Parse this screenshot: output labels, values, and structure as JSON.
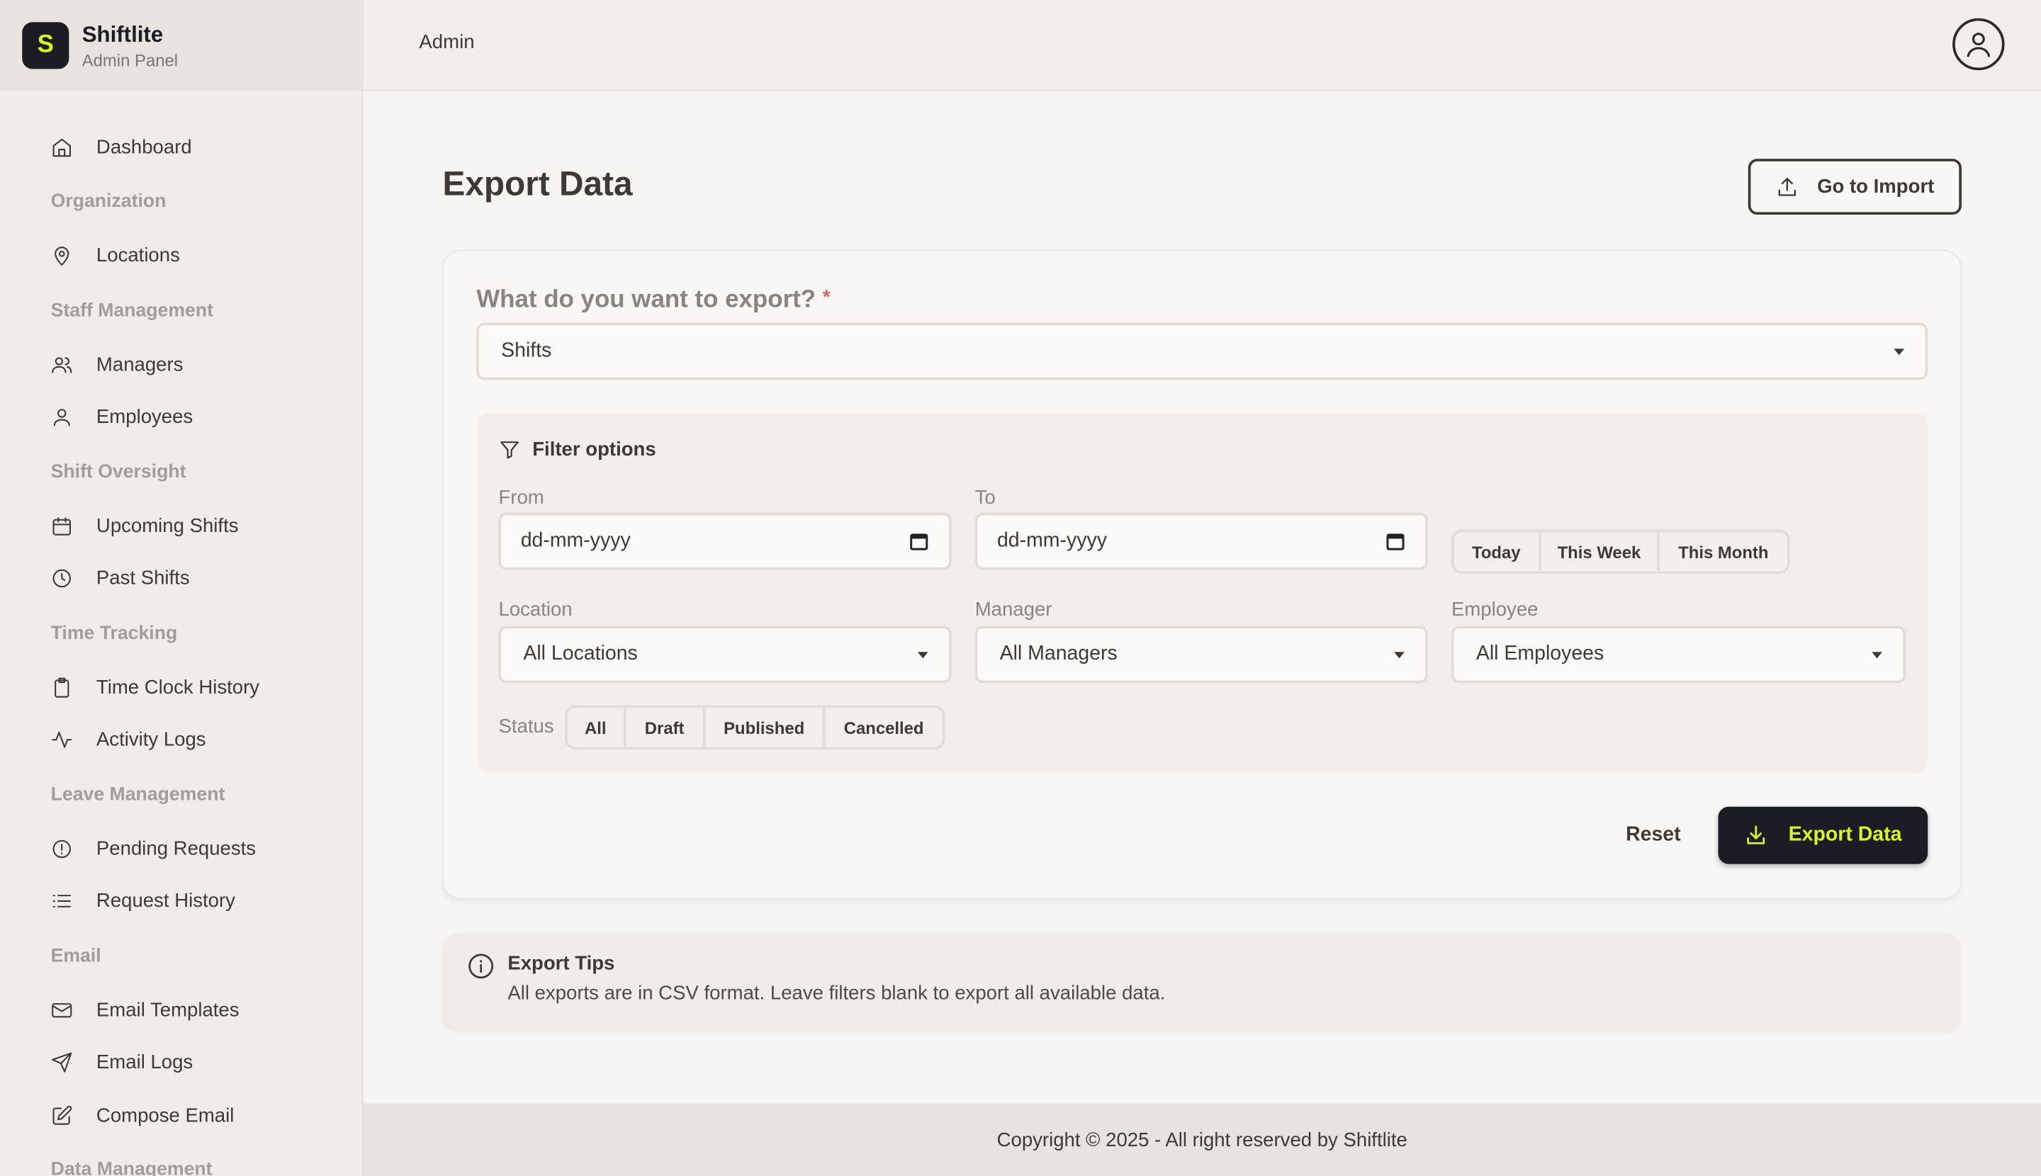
{
  "brand": {
    "logo_letter": "S",
    "name": "Shiftlite",
    "subtitle": "Admin Panel",
    "accent": "#d9f71a",
    "dark": "#1c1c24"
  },
  "topbar": {
    "title": "Admin",
    "avatar_icon": "user-circle-icon"
  },
  "sidebar": {
    "items": [
      {
        "type": "item",
        "label": "Dashboard",
        "icon": "home-icon"
      },
      {
        "type": "section",
        "label": "Organization"
      },
      {
        "type": "item",
        "label": "Locations",
        "icon": "map-pin-icon"
      },
      {
        "type": "section",
        "label": "Staff Management"
      },
      {
        "type": "item",
        "label": "Managers",
        "icon": "users-icon"
      },
      {
        "type": "item",
        "label": "Employees",
        "icon": "user-icon"
      },
      {
        "type": "section",
        "label": "Shift Oversight"
      },
      {
        "type": "item",
        "label": "Upcoming Shifts",
        "icon": "calendar-icon"
      },
      {
        "type": "item",
        "label": "Past Shifts",
        "icon": "clock-icon"
      },
      {
        "type": "section",
        "label": "Time Tracking"
      },
      {
        "type": "item",
        "label": "Time Clock History",
        "icon": "clipboard-icon"
      },
      {
        "type": "item",
        "label": "Activity Logs",
        "icon": "activity-icon"
      },
      {
        "type": "section",
        "label": "Leave Management"
      },
      {
        "type": "item",
        "label": "Pending Requests",
        "icon": "alert-circle-icon"
      },
      {
        "type": "item",
        "label": "Request History",
        "icon": "list-icon"
      },
      {
        "type": "section",
        "label": "Email"
      },
      {
        "type": "item",
        "label": "Email Templates",
        "icon": "mail-icon"
      },
      {
        "type": "item",
        "label": "Email Logs",
        "icon": "send-icon"
      },
      {
        "type": "item",
        "label": "Compose Email",
        "icon": "edit-icon"
      },
      {
        "type": "section",
        "label": "Data Management"
      }
    ]
  },
  "page": {
    "title": "Export Data",
    "go_import_label": "Go to Import"
  },
  "form": {
    "export_label": "What do you want to export?",
    "required_mark": "*",
    "export_value": "Shifts",
    "filter_title": "Filter options",
    "from_label": "From",
    "from_placeholder": "dd-mm-yyyy",
    "to_label": "To",
    "to_placeholder": "dd-mm-yyyy",
    "quick_ranges": [
      "Today",
      "This Week",
      "This Month"
    ],
    "location_label": "Location",
    "location_value": "All Locations",
    "manager_label": "Manager",
    "manager_value": "All Managers",
    "employee_label": "Employee",
    "employee_value": "All Employees",
    "status_label": "Status",
    "statuses": [
      "All",
      "Draft",
      "Published",
      "Cancelled"
    ],
    "reset_label": "Reset",
    "export_button_label": "Export Data"
  },
  "tips": {
    "title": "Export Tips",
    "text": "All exports are in CSV format. Leave filters blank to export all available data."
  },
  "footer": {
    "text": "Copyright © 2025 - All right reserved by Shiftlite"
  }
}
